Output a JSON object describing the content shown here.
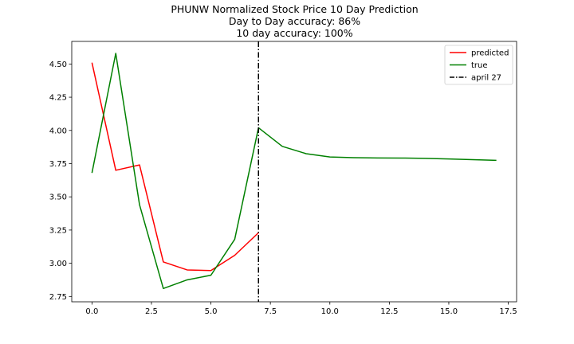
{
  "chart_data": {
    "type": "line",
    "title_lines": [
      "PHUNW Normalized Stock Price 10 Day Prediction",
      "Day to Day accuracy: 86%",
      "10 day accuracy: 100%"
    ],
    "xlabel": "",
    "ylabel": "",
    "xlim": [
      -0.85,
      17.85
    ],
    "ylim": [
      2.71,
      4.67
    ],
    "x_ticks": [
      0.0,
      2.5,
      5.0,
      7.5,
      10.0,
      12.5,
      15.0,
      17.5
    ],
    "x_tick_labels": [
      "0.0",
      "2.5",
      "5.0",
      "7.5",
      "10.0",
      "12.5",
      "15.0",
      "17.5"
    ],
    "y_ticks": [
      2.75,
      3.0,
      3.25,
      3.5,
      3.75,
      4.0,
      4.25,
      4.5
    ],
    "y_tick_labels": [
      "2.75",
      "3.00",
      "3.25",
      "3.50",
      "3.75",
      "4.00",
      "4.25",
      "4.50"
    ],
    "grid": false,
    "legend_position": "top-right",
    "series": [
      {
        "name": "predicted",
        "color": "#ff0000",
        "x": [
          0,
          1,
          2,
          3,
          4,
          5,
          6,
          7
        ],
        "y": [
          4.51,
          3.7,
          3.74,
          3.01,
          2.95,
          2.945,
          3.06,
          3.23
        ]
      },
      {
        "name": "true",
        "color": "#008000",
        "x": [
          0,
          1,
          2,
          3,
          4,
          5,
          6,
          7,
          8,
          9,
          10,
          11,
          12,
          13,
          14,
          15,
          16,
          17
        ],
        "y": [
          3.68,
          4.58,
          3.44,
          2.81,
          2.875,
          2.91,
          3.18,
          4.02,
          3.88,
          3.825,
          3.8,
          3.795,
          3.793,
          3.792,
          3.79,
          3.785,
          3.78,
          3.775
        ]
      }
    ],
    "vline": {
      "name": "april 27",
      "x": 7,
      "color": "#000000",
      "style": "dash-dot"
    }
  }
}
